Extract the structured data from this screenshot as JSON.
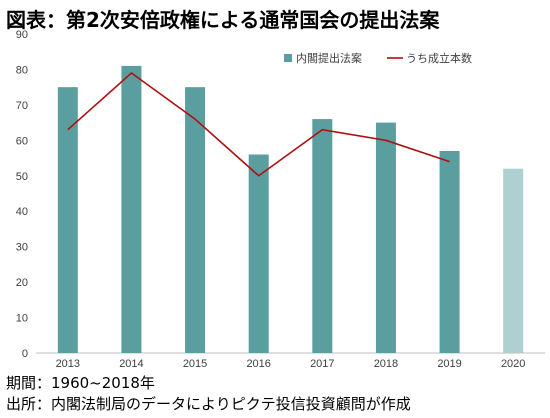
{
  "title": "図表：第2次安倍政権による通常国会の提出法案",
  "footer": {
    "period": "期間：1960~2018年",
    "source": "出所：内閣法制局のデータによりピクテ投信投資顧問が作成"
  },
  "colors": {
    "bar": "#5b9ea0",
    "bar_last": "#aed0d0",
    "line": "#b01010",
    "axis_text": "#404040",
    "baseline": "#bfbfbf"
  },
  "chart_data": {
    "type": "bar",
    "categories": [
      "2013",
      "2014",
      "2015",
      "2016",
      "2017",
      "2018",
      "2019",
      "2020"
    ],
    "series": [
      {
        "name": "内閣提出法案",
        "type": "bar",
        "values": [
          75,
          81,
          75,
          56,
          66,
          65,
          57,
          52
        ]
      },
      {
        "name": "うち成立本数",
        "type": "line",
        "values": [
          63,
          79,
          66,
          50,
          63,
          60,
          54,
          null
        ]
      }
    ],
    "ylim": [
      0,
      90
    ],
    "yticks": [
      "0",
      "10",
      "20",
      "30",
      "40",
      "50",
      "60",
      "70",
      "80",
      "90"
    ],
    "grid": false,
    "legend": "top-right"
  }
}
